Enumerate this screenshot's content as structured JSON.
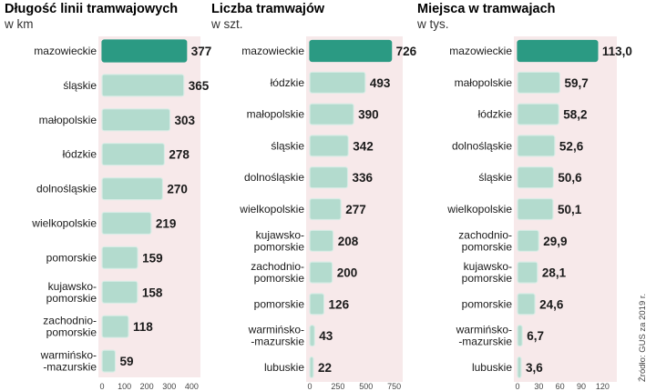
{
  "colors": {
    "panel_bg": "#f7e9ea",
    "bar_fill": "#b3dbce",
    "bar_highlight": "#2b9a83",
    "bar_stroke": "#d9ece6"
  },
  "source": "Źródło: GUS za 2019 r.",
  "chart_data": [
    {
      "type": "bar",
      "orientation": "horizontal",
      "title": "Długość linii tramwajowych",
      "subtitle": "w km",
      "categories": [
        "mazowieckie",
        "śląskie",
        "małopolskie",
        "łódzkie",
        "dolnośląskie",
        "wielkopolskie",
        "pomorskie",
        "kujawsko-\npomorskie",
        "zachodnio-\npomorskie",
        "warmińsko-\n-mazurskie"
      ],
      "values": [
        377,
        365,
        303,
        278,
        270,
        219,
        159,
        158,
        118,
        59
      ],
      "value_labels": [
        "377",
        "365",
        "303",
        "278",
        "270",
        "219",
        "159",
        "158",
        "118",
        "59"
      ],
      "highlight_index": 0,
      "xlim": [
        0,
        400
      ],
      "xticks": [
        "0",
        "100",
        "200",
        "300",
        "400"
      ]
    },
    {
      "type": "bar",
      "orientation": "horizontal",
      "title": "Liczba tramwajów",
      "subtitle": "w szt.",
      "categories": [
        "mazowieckie",
        "łódzkie",
        "małopolskie",
        "śląskie",
        "dolnośląskie",
        "wielkopolskie",
        "kujawsko-\npomorskie",
        "zachodnio-\npomorskie",
        "pomorskie",
        "warmińsko-\n-mazurskie",
        "lubuskie"
      ],
      "values": [
        726,
        493,
        390,
        342,
        336,
        277,
        208,
        200,
        126,
        43,
        22
      ],
      "value_labels": [
        "726",
        "493",
        "390",
        "342",
        "336",
        "277",
        "208",
        "200",
        "126",
        "43",
        "22"
      ],
      "highlight_index": 0,
      "xlim": [
        0,
        750
      ],
      "xticks": [
        "0",
        "250",
        "500",
        "750"
      ]
    },
    {
      "type": "bar",
      "orientation": "horizontal",
      "title": "Miejsca w tramwajach",
      "subtitle": "w tys.",
      "categories": [
        "mazowieckie",
        "małopolskie",
        "łódzkie",
        "dolnośląskie",
        "śląskie",
        "wielkopolskie",
        "zachodnio-\npomorskie",
        "kujawsko-\npomorskie",
        "pomorskie",
        "warmińsko-\n-mazurskie",
        "lubuskie"
      ],
      "values": [
        113.0,
        59.7,
        58.2,
        52.6,
        50.6,
        50.1,
        29.9,
        28.1,
        24.6,
        6.7,
        3.6
      ],
      "value_labels": [
        "113,0",
        "59,7",
        "58,2",
        "52,6",
        "50,6",
        "50,1",
        "29,9",
        "28,1",
        "24,6",
        "6,7",
        "3,6"
      ],
      "highlight_index": 0,
      "xlim": [
        0,
        120
      ],
      "xticks": [
        "0",
        "30",
        "60",
        "90",
        "120"
      ]
    }
  ]
}
